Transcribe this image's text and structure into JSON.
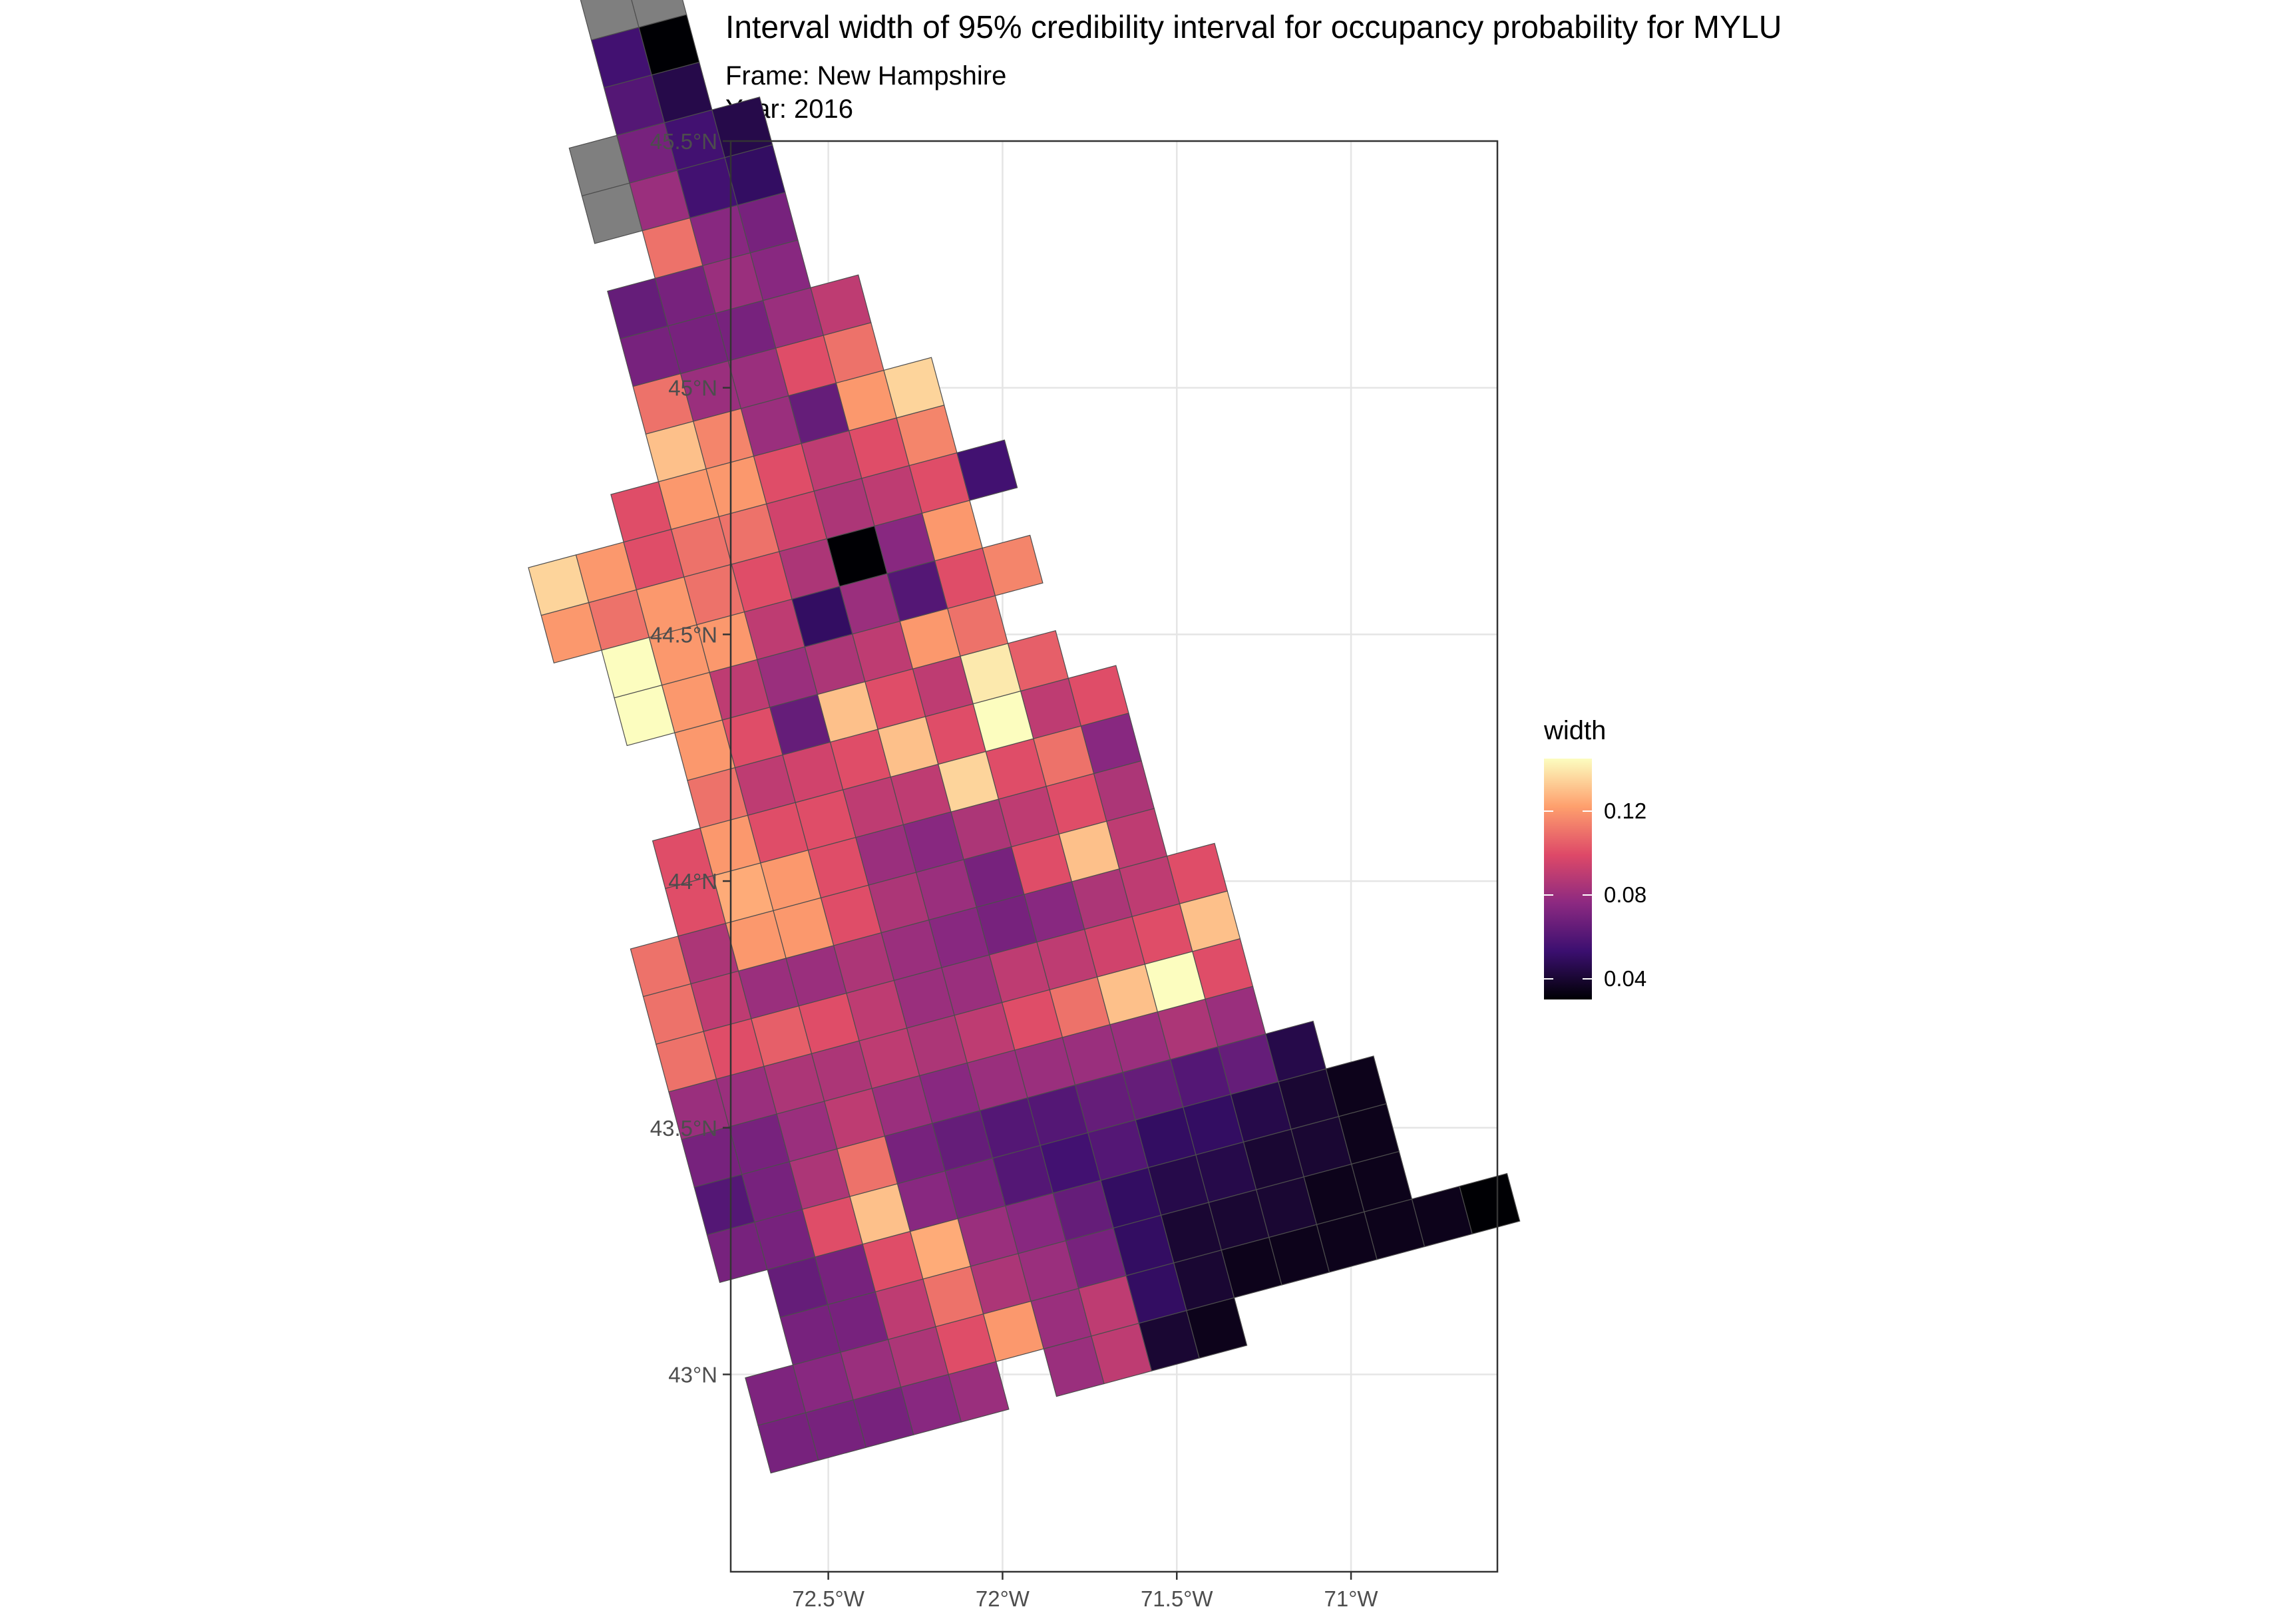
{
  "title": "Interval width of 95% credibility interval for occupancy probability for MYLU",
  "subtitle_frame": "Frame: New Hampshire",
  "subtitle_year": "Year: 2016",
  "axes": {
    "y_ticks": [
      "45.5°N",
      "45°N",
      "44.5°N",
      "44°N",
      "43.5°N",
      "43°N"
    ],
    "y_values": [
      45.5,
      45.0,
      44.5,
      44.0,
      43.5,
      43.0
    ],
    "x_ticks": [
      "72.5°W",
      "72°W",
      "71.5°W",
      "71°W"
    ],
    "x_values": [
      -72.5,
      -72.0,
      -71.5,
      -71.0
    ],
    "lon_range": [
      -72.78,
      -70.58
    ],
    "lat_range": [
      42.6,
      45.5
    ]
  },
  "legend": {
    "title": "width",
    "labels": [
      "0.12",
      "0.08",
      "0.04"
    ],
    "label_values": [
      0.12,
      0.08,
      0.04
    ],
    "range": [
      0.03,
      0.145
    ],
    "na_color": "#7f7f7f",
    "palette": "magma"
  },
  "chart_data": {
    "type": "heatmap",
    "grid": {
      "origin_lon": -72.665,
      "origin_lat": 42.8,
      "cell_deg": 0.1,
      "rotation_deg": 15
    },
    "rows": [
      {
        "r": 0,
        "start": 0,
        "values": [
          0.07,
          0.07,
          0.07,
          0.075,
          0.08
        ]
      },
      {
        "r": 0,
        "start": 6,
        "values": [
          0.08,
          0.09,
          0.04,
          0.035
        ]
      },
      {
        "r": 1,
        "start": 0,
        "values": [
          0.072,
          0.075,
          0.08,
          0.085,
          0.1,
          0.12
        ]
      },
      {
        "r": 1,
        "start": 6,
        "values": [
          0.08,
          0.09,
          0.05,
          0.04,
          0.035,
          0.035,
          0.035
        ]
      },
      {
        "r": 1,
        "start": 13,
        "values": [
          0.035,
          0.035,
          0.03
        ]
      },
      {
        "r": 2,
        "start": 1,
        "values": [
          0.07,
          0.07,
          0.09,
          0.11,
          0.085,
          0.08,
          0.07,
          0.05,
          0.04,
          0.04,
          0.04,
          0.035,
          0.035
        ]
      },
      {
        "r": 3,
        "start": 1,
        "values": [
          0.065,
          0.07,
          0.1,
          0.125,
          0.08,
          0.075,
          0.065,
          0.05,
          0.045,
          0.045,
          0.04,
          0.04,
          0.035
        ]
      },
      {
        "r": 4,
        "start": 0,
        "values": [
          0.07,
          0.07,
          0.1,
          0.13,
          0.075,
          0.07,
          0.06,
          0.055,
          0.06,
          0.05,
          0.05,
          0.045,
          0.04,
          0.035
        ]
      },
      {
        "r": 5,
        "start": 0,
        "values": [
          0.06,
          0.07,
          0.085,
          0.11,
          0.07,
          0.065,
          0.06,
          0.06,
          0.065,
          0.065,
          0.06,
          0.065,
          0.045
        ]
      },
      {
        "r": 6,
        "start": 0,
        "values": [
          0.07,
          0.07,
          0.08,
          0.09,
          0.08,
          0.075,
          0.08,
          0.08,
          0.08,
          0.08,
          0.085,
          0.08
        ]
      },
      {
        "r": 7,
        "start": 0,
        "values": [
          0.08,
          0.08,
          0.085,
          0.085,
          0.09,
          0.085,
          0.09,
          0.1,
          0.11,
          0.13,
          0.145,
          0.1
        ]
      },
      {
        "r": 8,
        "start": 0,
        "values": [
          0.11,
          0.1,
          0.105,
          0.1,
          0.09,
          0.08,
          0.08,
          0.09,
          0.09,
          0.095,
          0.1,
          0.13
        ]
      },
      {
        "r": 9,
        "start": 0,
        "values": [
          0.11,
          0.09,
          0.08,
          0.08,
          0.085,
          0.08,
          0.075,
          0.07,
          0.075,
          0.085,
          0.09,
          0.1
        ]
      },
      {
        "r": 10,
        "start": 0,
        "values": [
          0.11,
          0.085,
          0.12,
          0.12,
          0.1,
          0.085,
          0.08,
          0.07,
          0.1,
          0.13,
          0.09
        ]
      },
      {
        "r": 11,
        "start": 1,
        "values": [
          0.1,
          0.125,
          0.12,
          0.1,
          0.08,
          0.075,
          0.085,
          0.09,
          0.1,
          0.085
        ]
      },
      {
        "r": 12,
        "start": 1,
        "values": [
          0.1,
          0.12,
          0.1,
          0.1,
          0.09,
          0.09,
          0.135,
          0.1,
          0.11,
          0.075
        ]
      },
      {
        "r": 13,
        "start": 2,
        "values": [
          0.11,
          0.09,
          0.095,
          0.1,
          0.13,
          0.1,
          0.145,
          0.09,
          0.1
        ]
      },
      {
        "r": 14,
        "start": 2,
        "values": [
          0.12,
          0.1,
          0.065,
          0.13,
          0.1,
          0.09,
          0.14,
          0.105
        ]
      },
      {
        "r": 15,
        "start": 1,
        "values": [
          0.145,
          0.12,
          0.09,
          0.08,
          0.085,
          0.09,
          0.12,
          0.11
        ]
      },
      {
        "r": 16,
        "start": 1,
        "values": [
          0.145,
          0.12,
          0.12,
          0.09,
          0.05,
          0.08,
          0.06,
          0.1,
          0.115
        ]
      },
      {
        "r": 17,
        "start": 0,
        "values": [
          0.12,
          0.11,
          0.12,
          0.11,
          0.1,
          0.085,
          0.03,
          0.075
        ]
      },
      {
        "r": 17,
        "start": 8,
        "values": [
          0.12
        ]
      },
      {
        "r": 18,
        "start": 0,
        "values": [
          0.135,
          0.12,
          0.1,
          0.11,
          0.11,
          0.095,
          0.085,
          0.09,
          0.1,
          0.055
        ]
      },
      {
        "r": 19,
        "start": 2,
        "values": [
          0.1,
          0.12,
          0.12,
          0.1,
          0.09,
          0.1,
          0.115
        ]
      },
      {
        "r": 20,
        "start": 3,
        "values": [
          0.13,
          0.115,
          0.08,
          0.065,
          0.12,
          0.135
        ]
      },
      {
        "r": 21,
        "start": 3,
        "values": [
          0.11,
          0.08,
          0.08,
          0.1,
          0.11
        ]
      },
      {
        "r": 22,
        "start": 3,
        "values": [
          0.07,
          0.07,
          0.07,
          0.08,
          0.09
        ]
      },
      {
        "r": 23,
        "start": 3,
        "values": [
          0.065,
          0.07,
          0.08,
          0.075
        ]
      },
      {
        "r": 24,
        "start": 4,
        "values": [
          0.11,
          0.075,
          0.07
        ]
      },
      {
        "r": 25,
        "start": 3,
        "values": [
          null,
          0.08,
          0.055,
          0.05
        ]
      },
      {
        "r": 26,
        "start": 3,
        "values": [
          null,
          0.07,
          0.055,
          0.045
        ]
      },
      {
        "r": 27,
        "start": 4,
        "values": [
          0.06,
          0.045
        ]
      },
      {
        "r": 28,
        "start": 4,
        "values": [
          0.055,
          0.03
        ]
      },
      {
        "r": 29,
        "start": 4,
        "values": [
          null,
          null
        ]
      }
    ]
  }
}
